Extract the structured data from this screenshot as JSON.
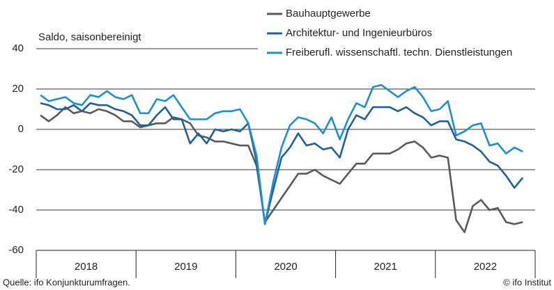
{
  "chart_data": {
    "type": "line",
    "subtitle": "Saldo, saisonbereinigt",
    "source": "Quelle: ifo Konjunkturumfragen.",
    "copyright": "© ifo Institut",
    "x": [
      2018.042,
      2018.125,
      2018.208,
      2018.292,
      2018.375,
      2018.458,
      2018.542,
      2018.625,
      2018.708,
      2018.792,
      2018.875,
      2018.958,
      2019.042,
      2019.125,
      2019.208,
      2019.292,
      2019.375,
      2019.458,
      2019.542,
      2019.625,
      2019.708,
      2019.792,
      2019.875,
      2019.958,
      2020.042,
      2020.125,
      2020.208,
      2020.292,
      2020.375,
      2020.458,
      2020.542,
      2020.625,
      2020.708,
      2020.792,
      2020.875,
      2020.958,
      2021.042,
      2021.125,
      2021.208,
      2021.292,
      2021.375,
      2021.458,
      2021.542,
      2021.625,
      2021.708,
      2021.792,
      2021.875,
      2021.958,
      2022.042,
      2022.125,
      2022.208,
      2022.292,
      2022.375,
      2022.458,
      2022.542,
      2022.625,
      2022.708,
      2022.792,
      2022.875
    ],
    "xlim": [
      2018,
      2023
    ],
    "xticks": [
      {
        "value": 2018.5,
        "label": "2018"
      },
      {
        "value": 2019.5,
        "label": "2019"
      },
      {
        "value": 2020.5,
        "label": "2020"
      },
      {
        "value": 2021.5,
        "label": "2021"
      },
      {
        "value": 2022.5,
        "label": "2022"
      }
    ],
    "ylim": [
      -60,
      40
    ],
    "yticks": [
      -60,
      -40,
      -20,
      0,
      20,
      40
    ],
    "grid": true,
    "series": [
      {
        "name": "Bauhauptgewerbe",
        "color": "#58595b",
        "values": [
          7,
          4,
          7,
          11,
          8,
          9,
          8,
          10,
          9,
          7,
          4,
          4,
          1,
          2,
          3,
          3,
          6,
          5,
          3,
          -3,
          -4,
          -6,
          -6,
          -7,
          -8,
          -8,
          -18,
          -46,
          -40,
          -34,
          -28,
          -22,
          -22,
          -20,
          -23,
          -25,
          -27,
          -22,
          -17,
          -17,
          -12,
          -12,
          -12,
          -10,
          -7,
          -6,
          -9,
          -14,
          -13,
          -14,
          -45,
          -51,
          -38,
          -35,
          -40,
          -39,
          -46,
          -47,
          -46
        ]
      },
      {
        "name": "Architektur- und Ingenieurbüros",
        "color": "#1f5f9a",
        "values": [
          13,
          12,
          10,
          10,
          12,
          9,
          13,
          12,
          12,
          10,
          9,
          7,
          2,
          2,
          7,
          11,
          5,
          5,
          -7,
          -2,
          -7,
          0,
          -1,
          0,
          -1,
          3,
          -16,
          -47,
          -30,
          -14,
          -9,
          -2,
          -8,
          -7,
          -10,
          -9,
          -14,
          0,
          7,
          5,
          11,
          11,
          11,
          9,
          11,
          8,
          6,
          2,
          4,
          4,
          -5,
          -6,
          -8,
          -11,
          -16,
          -18,
          -23,
          -29,
          -24
        ]
      },
      {
        "name": "Freiberufl. wissenschaftl. techn. Dienstleistungen",
        "color": "#1b8fd0",
        "values": [
          17,
          14,
          15,
          16,
          13,
          12,
          17,
          16,
          19,
          16,
          15,
          17,
          8,
          8,
          15,
          14,
          17,
          11,
          5,
          5,
          5,
          8,
          9,
          9,
          10,
          3,
          -13,
          -47,
          -26,
          -9,
          2,
          6,
          5,
          3,
          -2,
          6,
          -5,
          5,
          13,
          11,
          21,
          22,
          19,
          16,
          19,
          21,
          16,
          9,
          10,
          14,
          -3,
          -1,
          2,
          3,
          -8,
          -7,
          -12,
          -9,
          -11
        ]
      }
    ]
  }
}
